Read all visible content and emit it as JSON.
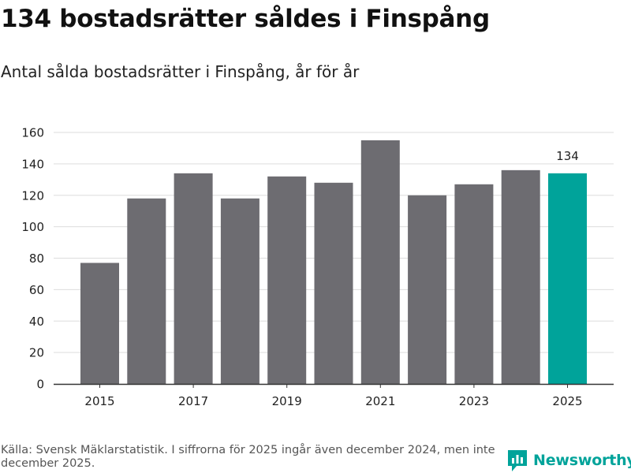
{
  "title": "134 bostadsrätter såldes i Finspång",
  "subtitle": "Antal sålda bostadsrätter i Finspång, år för år",
  "source": "Källa: Svensk Mäklarstatistik. I siffrorna för 2025 ingår även december 2024, men inte december 2025.",
  "logo": {
    "name": "Newsworthy",
    "icon": "newsworthy-logo-icon"
  },
  "colors": {
    "bar": "#6d6c71",
    "highlight": "#00a39a",
    "grid": "#dddddd",
    "axis": "#333333",
    "brand": "#00a39a"
  },
  "chart_data": {
    "type": "bar",
    "title": "Antal sålda bostadsrätter i Finspång, år för år",
    "categories": [
      "2015",
      "2016",
      "2017",
      "2018",
      "2019",
      "2020",
      "2021",
      "2022",
      "2023",
      "2024",
      "2025"
    ],
    "values": [
      77,
      118,
      134,
      118,
      132,
      128,
      155,
      120,
      127,
      136,
      134
    ],
    "x_tick_labels": [
      "2015",
      "2017",
      "2019",
      "2021",
      "2023",
      "2025"
    ],
    "y_ticks": [
      0,
      20,
      40,
      60,
      80,
      100,
      120,
      140,
      160
    ],
    "ylim": [
      0,
      160
    ],
    "xlabel": "",
    "ylabel": "",
    "highlight_category": "2025",
    "annotations": [
      {
        "category": "2025",
        "label": "134"
      }
    ],
    "grid": true
  }
}
